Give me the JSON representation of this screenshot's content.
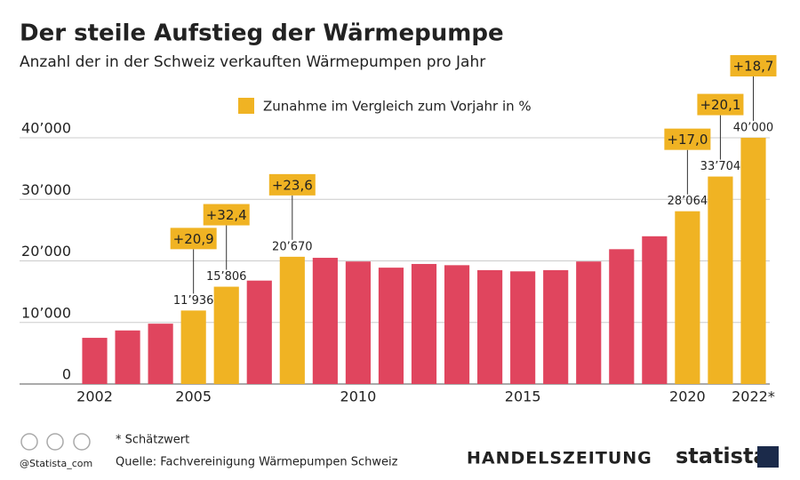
{
  "chart_data": {
    "type": "bar",
    "title": "Der steile Aufstieg der Wärmepumpe",
    "subtitle": "Anzahl der in der Schweiz verkauften Wärmepumpen pro Jahr",
    "legend": {
      "label": "Zunahme im Vergleich zum Vorjahr in %",
      "color": "#f0b323"
    },
    "categories": [
      "2002",
      null,
      null,
      "2005",
      null,
      null,
      null,
      null,
      "2010",
      null,
      null,
      null,
      null,
      "2015",
      null,
      null,
      null,
      null,
      "2020",
      null,
      "2022*"
    ],
    "values": [
      7500,
      8700,
      9800,
      11936,
      15806,
      16800,
      20670,
      20500,
      19900,
      18900,
      19500,
      19300,
      18500,
      18300,
      18500,
      19900,
      21900,
      24000,
      28064,
      33704,
      40000
    ],
    "value_labels": [
      null,
      null,
      null,
      "11’936",
      "15’806",
      null,
      "20’670",
      null,
      null,
      null,
      null,
      null,
      null,
      null,
      null,
      null,
      null,
      null,
      "28’064",
      "33’704",
      "40’000"
    ],
    "change_labels": [
      null,
      null,
      null,
      "+20,9",
      "+32,4",
      null,
      "+23,6",
      null,
      null,
      null,
      null,
      null,
      null,
      null,
      null,
      null,
      null,
      null,
      "+17,0",
      "+20,1",
      "+18,7"
    ],
    "colors": [
      "#e0455e",
      "#e0455e",
      "#e0455e",
      "#f0b323",
      "#f0b323",
      "#e0455e",
      "#f0b323",
      "#e0455e",
      "#e0455e",
      "#e0455e",
      "#e0455e",
      "#e0455e",
      "#e0455e",
      "#e0455e",
      "#e0455e",
      "#e0455e",
      "#e0455e",
      "#e0455e",
      "#f0b323",
      "#f0b323",
      "#f0b323"
    ],
    "ylim": [
      0,
      40000
    ],
    "yticks": [
      0,
      {
        "value": 10000,
        "label": "10’000"
      },
      {
        "value": 20000,
        "label": "20’000"
      },
      {
        "value": 30000,
        "label": "30’000"
      },
      {
        "value": 40000,
        "label": "40’000"
      }
    ],
    "grid": true
  },
  "footer": {
    "note": "* Schätzwert",
    "source": "Quelle: Fachvereinigung Wärmepumpen Schweiz",
    "handle": "@Statista_com",
    "publisher": "HANDELSZEITUNG",
    "brand": "statista"
  }
}
